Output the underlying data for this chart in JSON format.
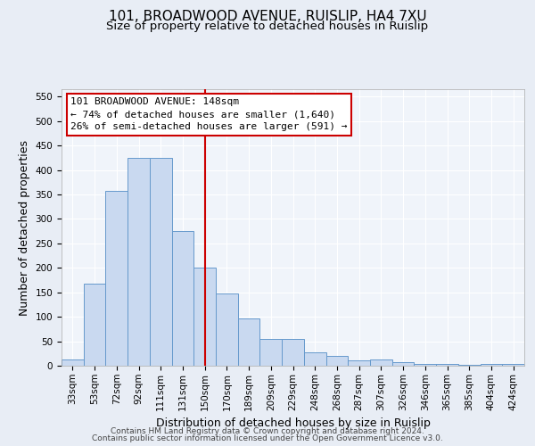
{
  "title_line1": "101, BROADWOOD AVENUE, RUISLIP, HA4 7XU",
  "title_line2": "Size of property relative to detached houses in Ruislip",
  "xlabel": "Distribution of detached houses by size in Ruislip",
  "ylabel": "Number of detached properties",
  "categories": [
    "33sqm",
    "53sqm",
    "72sqm",
    "92sqm",
    "111sqm",
    "131sqm",
    "150sqm",
    "170sqm",
    "189sqm",
    "209sqm",
    "229sqm",
    "248sqm",
    "268sqm",
    "287sqm",
    "307sqm",
    "326sqm",
    "346sqm",
    "365sqm",
    "385sqm",
    "404sqm",
    "424sqm"
  ],
  "values": [
    13,
    168,
    357,
    425,
    425,
    275,
    200,
    148,
    97,
    55,
    55,
    27,
    20,
    11,
    12,
    7,
    4,
    4,
    1,
    3,
    3
  ],
  "bar_color": "#c9d9f0",
  "bar_edge_color": "#6699cc",
  "vline_x_index": 6,
  "vline_color": "#cc0000",
  "annotation_line1": "101 BROADWOOD AVENUE: 148sqm",
  "annotation_line2": "← 74% of detached houses are smaller (1,640)",
  "annotation_line3": "26% of semi-detached houses are larger (591) →",
  "annotation_box_color": "#ffffff",
  "annotation_box_edge_color": "#cc0000",
  "ylim": [
    0,
    565
  ],
  "yticks": [
    0,
    50,
    100,
    150,
    200,
    250,
    300,
    350,
    400,
    450,
    500,
    550
  ],
  "footer_line1": "Contains HM Land Registry data © Crown copyright and database right 2024.",
  "footer_line2": "Contains public sector information licensed under the Open Government Licence v3.0.",
  "bg_color": "#e8edf5",
  "plot_bg_color": "#f0f4fa",
  "title_fontsize": 11,
  "subtitle_fontsize": 9.5,
  "axis_label_fontsize": 9,
  "tick_fontsize": 7.5,
  "annotation_fontsize": 8,
  "footer_fontsize": 6.5
}
